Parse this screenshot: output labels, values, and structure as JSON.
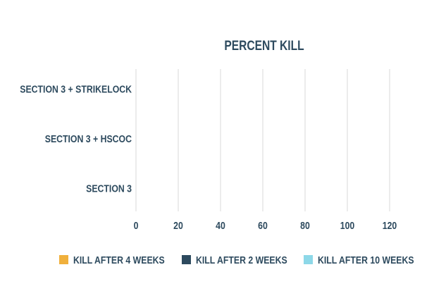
{
  "chart_data": {
    "type": "hbar",
    "title": "PERCENT KILL",
    "categories": [
      "SECTION 3 + STRIKELOCK",
      "SECTION 3 + HSCOC",
      "SECTION 3"
    ],
    "series": [
      {
        "name": "KILL AFTER 4 WEEKS",
        "color": "#f0b03c",
        "values": [
          0,
          0,
          0
        ]
      },
      {
        "name": "KILL AFTER 2 WEEKS",
        "color": "#2d4a5e",
        "values": [
          0,
          0,
          0
        ]
      },
      {
        "name": "KILL AFTER 10 WEEKS",
        "color": "#8dd8e8",
        "values": [
          0,
          0,
          0
        ]
      }
    ],
    "xlim": [
      0,
      120
    ],
    "xticks": [
      0,
      20,
      40,
      60,
      80,
      100,
      120
    ],
    "grid": true,
    "legend": "bottom"
  }
}
